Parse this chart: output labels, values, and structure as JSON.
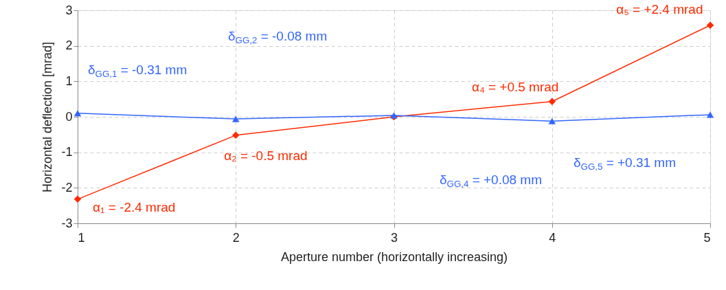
{
  "chart_data": {
    "type": "line",
    "xlabel": "Aperture number (horizontally increasing)",
    "ylabel": "Horizontal deflection [mrad]",
    "x": [
      1,
      2,
      3,
      4,
      5
    ],
    "series": [
      {
        "color": "#ff2a00",
        "marker": "diamond",
        "values": [
          -2.32,
          -0.52,
          0.0,
          0.43,
          2.58
        ]
      },
      {
        "color": "#3366ff",
        "marker": "triangle",
        "values": [
          0.1,
          -0.06,
          0.04,
          -0.12,
          0.06
        ]
      }
    ],
    "xlim": [
      1,
      5
    ],
    "xticks": [
      1,
      2,
      3,
      4,
      5
    ],
    "ylim": [
      -3,
      3
    ],
    "yticks": [
      -3,
      -2,
      -1,
      0,
      1,
      2,
      3
    ],
    "grid": true,
    "line_style": "solid",
    "annotations": [
      {
        "text": "α₁ = -2.4 mrad",
        "x": 1,
        "y": -2.32
      },
      {
        "text": "α₂ = -0.5 mrad",
        "x": 2,
        "y": -0.52
      },
      {
        "text": "α₄ = +0.5 mrad",
        "x": 4,
        "y": 0.43
      },
      {
        "text": "α₅ = +2.4 mrad",
        "x": 5,
        "y": 2.58
      },
      {
        "text": "δ$_{GG,1}$ = -0.31 mm",
        "x": 1,
        "y": 0.1
      },
      "δ$_{GG,2}$ = -0.08 mm",
      "δ$_{GG,4}$ = +0.08 mm",
      "δ$_{GG,5}$ = +0.31 mm"
    ]
  }
}
